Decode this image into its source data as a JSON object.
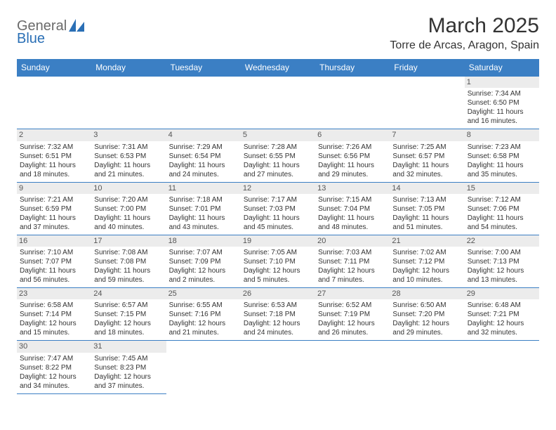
{
  "logo": {
    "part1": "General",
    "part2": "Blue"
  },
  "title": "March 2025",
  "location": "Torre de Arcas, Aragon, Spain",
  "colors": {
    "header_bg": "#3b7fc4",
    "header_text": "#ffffff",
    "daynum_bg": "#ececec",
    "border": "#3b7fc4",
    "logo_gray": "#6a6a6a",
    "logo_blue": "#2a6fb5"
  },
  "weekdays": [
    "Sunday",
    "Monday",
    "Tuesday",
    "Wednesday",
    "Thursday",
    "Friday",
    "Saturday"
  ],
  "weeks": [
    [
      null,
      null,
      null,
      null,
      null,
      null,
      {
        "d": "1",
        "sr": "Sunrise: 7:34 AM",
        "ss": "Sunset: 6:50 PM",
        "dl1": "Daylight: 11 hours",
        "dl2": "and 16 minutes."
      }
    ],
    [
      {
        "d": "2",
        "sr": "Sunrise: 7:32 AM",
        "ss": "Sunset: 6:51 PM",
        "dl1": "Daylight: 11 hours",
        "dl2": "and 18 minutes."
      },
      {
        "d": "3",
        "sr": "Sunrise: 7:31 AM",
        "ss": "Sunset: 6:53 PM",
        "dl1": "Daylight: 11 hours",
        "dl2": "and 21 minutes."
      },
      {
        "d": "4",
        "sr": "Sunrise: 7:29 AM",
        "ss": "Sunset: 6:54 PM",
        "dl1": "Daylight: 11 hours",
        "dl2": "and 24 minutes."
      },
      {
        "d": "5",
        "sr": "Sunrise: 7:28 AM",
        "ss": "Sunset: 6:55 PM",
        "dl1": "Daylight: 11 hours",
        "dl2": "and 27 minutes."
      },
      {
        "d": "6",
        "sr": "Sunrise: 7:26 AM",
        "ss": "Sunset: 6:56 PM",
        "dl1": "Daylight: 11 hours",
        "dl2": "and 29 minutes."
      },
      {
        "d": "7",
        "sr": "Sunrise: 7:25 AM",
        "ss": "Sunset: 6:57 PM",
        "dl1": "Daylight: 11 hours",
        "dl2": "and 32 minutes."
      },
      {
        "d": "8",
        "sr": "Sunrise: 7:23 AM",
        "ss": "Sunset: 6:58 PM",
        "dl1": "Daylight: 11 hours",
        "dl2": "and 35 minutes."
      }
    ],
    [
      {
        "d": "9",
        "sr": "Sunrise: 7:21 AM",
        "ss": "Sunset: 6:59 PM",
        "dl1": "Daylight: 11 hours",
        "dl2": "and 37 minutes."
      },
      {
        "d": "10",
        "sr": "Sunrise: 7:20 AM",
        "ss": "Sunset: 7:00 PM",
        "dl1": "Daylight: 11 hours",
        "dl2": "and 40 minutes."
      },
      {
        "d": "11",
        "sr": "Sunrise: 7:18 AM",
        "ss": "Sunset: 7:01 PM",
        "dl1": "Daylight: 11 hours",
        "dl2": "and 43 minutes."
      },
      {
        "d": "12",
        "sr": "Sunrise: 7:17 AM",
        "ss": "Sunset: 7:03 PM",
        "dl1": "Daylight: 11 hours",
        "dl2": "and 45 minutes."
      },
      {
        "d": "13",
        "sr": "Sunrise: 7:15 AM",
        "ss": "Sunset: 7:04 PM",
        "dl1": "Daylight: 11 hours",
        "dl2": "and 48 minutes."
      },
      {
        "d": "14",
        "sr": "Sunrise: 7:13 AM",
        "ss": "Sunset: 7:05 PM",
        "dl1": "Daylight: 11 hours",
        "dl2": "and 51 minutes."
      },
      {
        "d": "15",
        "sr": "Sunrise: 7:12 AM",
        "ss": "Sunset: 7:06 PM",
        "dl1": "Daylight: 11 hours",
        "dl2": "and 54 minutes."
      }
    ],
    [
      {
        "d": "16",
        "sr": "Sunrise: 7:10 AM",
        "ss": "Sunset: 7:07 PM",
        "dl1": "Daylight: 11 hours",
        "dl2": "and 56 minutes."
      },
      {
        "d": "17",
        "sr": "Sunrise: 7:08 AM",
        "ss": "Sunset: 7:08 PM",
        "dl1": "Daylight: 11 hours",
        "dl2": "and 59 minutes."
      },
      {
        "d": "18",
        "sr": "Sunrise: 7:07 AM",
        "ss": "Sunset: 7:09 PM",
        "dl1": "Daylight: 12 hours",
        "dl2": "and 2 minutes."
      },
      {
        "d": "19",
        "sr": "Sunrise: 7:05 AM",
        "ss": "Sunset: 7:10 PM",
        "dl1": "Daylight: 12 hours",
        "dl2": "and 5 minutes."
      },
      {
        "d": "20",
        "sr": "Sunrise: 7:03 AM",
        "ss": "Sunset: 7:11 PM",
        "dl1": "Daylight: 12 hours",
        "dl2": "and 7 minutes."
      },
      {
        "d": "21",
        "sr": "Sunrise: 7:02 AM",
        "ss": "Sunset: 7:12 PM",
        "dl1": "Daylight: 12 hours",
        "dl2": "and 10 minutes."
      },
      {
        "d": "22",
        "sr": "Sunrise: 7:00 AM",
        "ss": "Sunset: 7:13 PM",
        "dl1": "Daylight: 12 hours",
        "dl2": "and 13 minutes."
      }
    ],
    [
      {
        "d": "23",
        "sr": "Sunrise: 6:58 AM",
        "ss": "Sunset: 7:14 PM",
        "dl1": "Daylight: 12 hours",
        "dl2": "and 15 minutes."
      },
      {
        "d": "24",
        "sr": "Sunrise: 6:57 AM",
        "ss": "Sunset: 7:15 PM",
        "dl1": "Daylight: 12 hours",
        "dl2": "and 18 minutes."
      },
      {
        "d": "25",
        "sr": "Sunrise: 6:55 AM",
        "ss": "Sunset: 7:16 PM",
        "dl1": "Daylight: 12 hours",
        "dl2": "and 21 minutes."
      },
      {
        "d": "26",
        "sr": "Sunrise: 6:53 AM",
        "ss": "Sunset: 7:18 PM",
        "dl1": "Daylight: 12 hours",
        "dl2": "and 24 minutes."
      },
      {
        "d": "27",
        "sr": "Sunrise: 6:52 AM",
        "ss": "Sunset: 7:19 PM",
        "dl1": "Daylight: 12 hours",
        "dl2": "and 26 minutes."
      },
      {
        "d": "28",
        "sr": "Sunrise: 6:50 AM",
        "ss": "Sunset: 7:20 PM",
        "dl1": "Daylight: 12 hours",
        "dl2": "and 29 minutes."
      },
      {
        "d": "29",
        "sr": "Sunrise: 6:48 AM",
        "ss": "Sunset: 7:21 PM",
        "dl1": "Daylight: 12 hours",
        "dl2": "and 32 minutes."
      }
    ],
    [
      {
        "d": "30",
        "sr": "Sunrise: 7:47 AM",
        "ss": "Sunset: 8:22 PM",
        "dl1": "Daylight: 12 hours",
        "dl2": "and 34 minutes."
      },
      {
        "d": "31",
        "sr": "Sunrise: 7:45 AM",
        "ss": "Sunset: 8:23 PM",
        "dl1": "Daylight: 12 hours",
        "dl2": "and 37 minutes."
      },
      null,
      null,
      null,
      null,
      null
    ]
  ]
}
